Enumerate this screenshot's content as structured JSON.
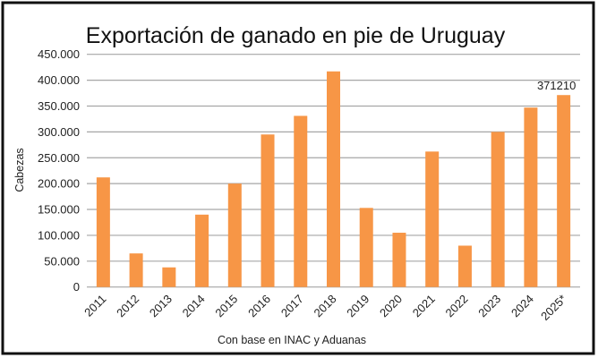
{
  "chart_data": {
    "type": "bar",
    "title": "Exportación de ganado en pie de Uruguay",
    "xlabel": "Con base en INAC y Aduanas",
    "ylabel": "Cabezas",
    "categories": [
      "2011",
      "2012",
      "2013",
      "2014",
      "2015",
      "2016",
      "2017",
      "2018",
      "2019",
      "2020",
      "2021",
      "2022",
      "2023",
      "2024",
      "2025*"
    ],
    "values": [
      212000,
      65000,
      38000,
      140000,
      200000,
      295000,
      331000,
      417000,
      153000,
      105000,
      262000,
      80000,
      300000,
      347000,
      371210
    ],
    "data_labels": [
      {
        "category": "2025*",
        "text": "371210"
      }
    ],
    "ylim": [
      0,
      450000
    ],
    "yticks": [
      0,
      50000,
      100000,
      150000,
      200000,
      250000,
      300000,
      350000,
      400000,
      450000
    ],
    "ytick_labels": [
      "0",
      "50.000",
      "100.000",
      "150.000",
      "200.000",
      "250.000",
      "300.000",
      "350.000",
      "400.000",
      "450.000"
    ],
    "grid": true,
    "bar_color": "#F79646",
    "grid_color": "#A6A6A6"
  }
}
